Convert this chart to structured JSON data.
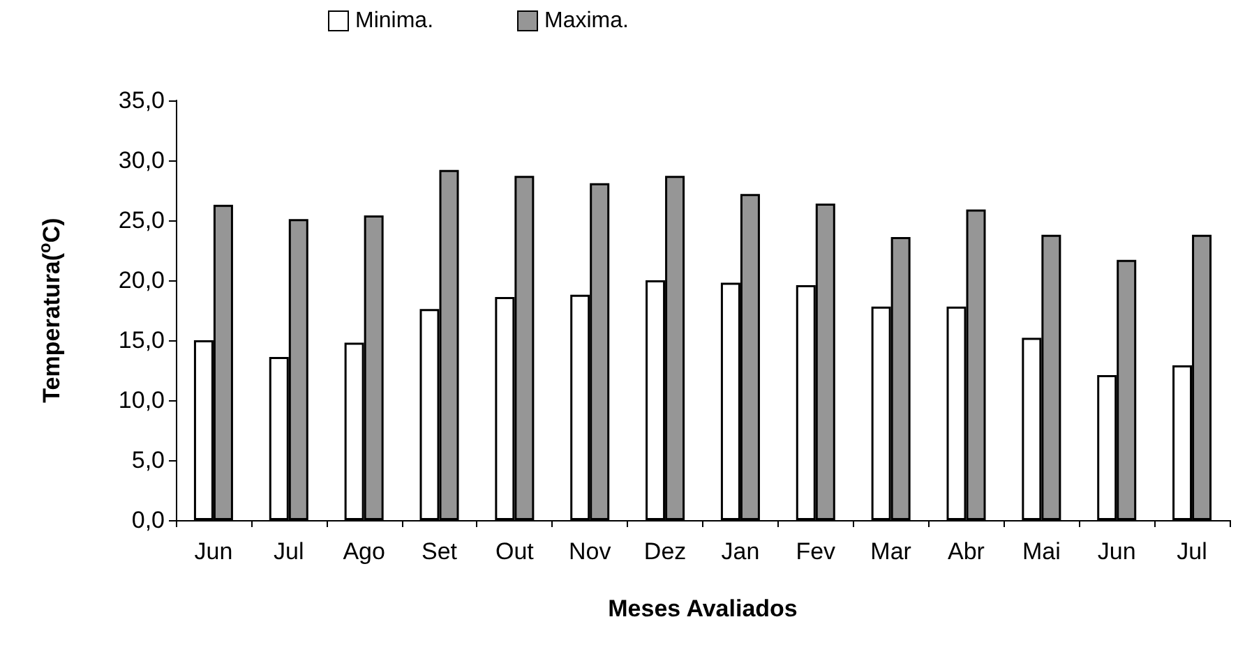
{
  "chart_data": {
    "type": "bar",
    "xlabel": "Meses Avaliados",
    "ylabel": "Temperatura($^{o}$C)",
    "categories": [
      "Jun",
      "Jul",
      "Ago",
      "Set",
      "Out",
      "Nov",
      "Dez",
      "Jan",
      "Fev",
      "Mar",
      "Abr",
      "Mai",
      "Jun",
      "Jul"
    ],
    "series": [
      {
        "name": "Minima.",
        "color": "#ffffff",
        "values": [
          15.0,
          13.6,
          14.8,
          17.6,
          18.6,
          18.8,
          20.0,
          19.8,
          19.6,
          17.8,
          17.8,
          15.2,
          12.1,
          12.9
        ]
      },
      {
        "name": "Maxima.",
        "color": "#969696",
        "values": [
          26.3,
          25.1,
          25.4,
          29.2,
          28.7,
          28.1,
          28.7,
          27.2,
          26.4,
          23.6,
          25.9,
          23.8,
          21.7,
          23.8
        ]
      }
    ],
    "ylim": [
      0,
      35
    ],
    "yticks": [
      {
        "value": 0,
        "label": "0,0"
      },
      {
        "value": 5,
        "label": "5,0"
      },
      {
        "value": 10,
        "label": "10,0"
      },
      {
        "value": 15,
        "label": "15,0"
      },
      {
        "value": 20,
        "label": "20,0"
      },
      {
        "value": 25,
        "label": "25,0"
      },
      {
        "value": 30,
        "label": "30,0"
      },
      {
        "value": 35,
        "label": "35,0"
      }
    ],
    "grid": false,
    "legend": "top"
  }
}
